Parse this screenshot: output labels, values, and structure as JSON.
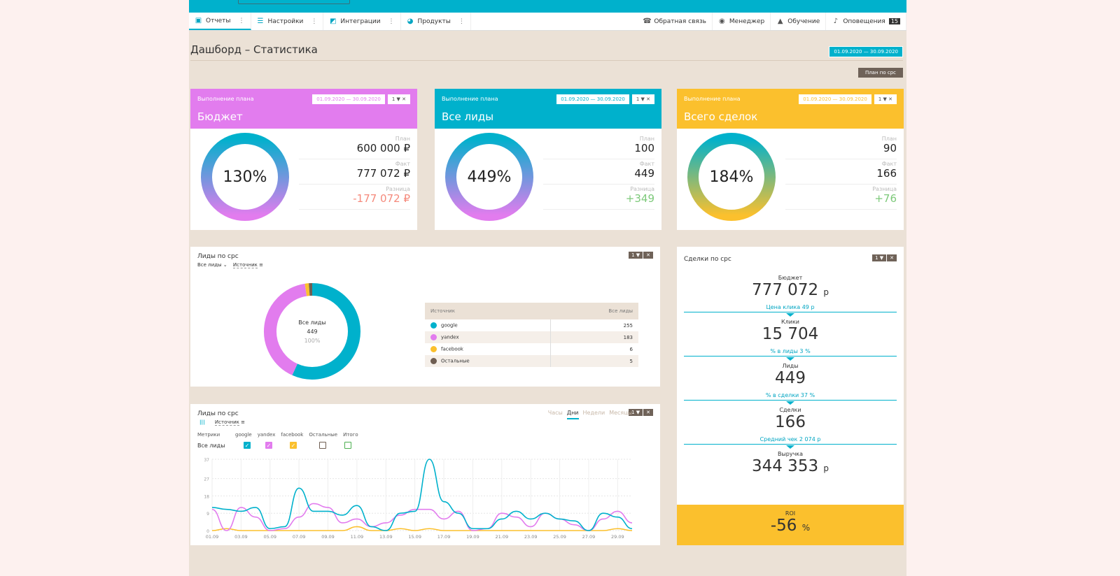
{
  "nav": {
    "items": [
      {
        "label": "Отчеты",
        "icon": "clipboard-icon"
      },
      {
        "label": "Настройки",
        "icon": "sliders-icon"
      },
      {
        "label": "Интеграции",
        "icon": "puzzle-icon"
      },
      {
        "label": "Продукты",
        "icon": "globe-icon"
      }
    ],
    "right": [
      {
        "label": "Обратная связь",
        "icon": "feedback-icon"
      },
      {
        "label": "Менеджер",
        "icon": "headset-icon"
      },
      {
        "label": "Обучение",
        "icon": "graduation-cap-icon"
      },
      {
        "label": "Оповещения",
        "icon": "bell-icon",
        "badge": "15"
      }
    ]
  },
  "page": {
    "title": "Дашборд – Статистика",
    "date_range": "01.09.2020 — 30.09.2020",
    "plan_button": "План по cpc"
  },
  "cards": [
    {
      "sub": "Выполнение плана",
      "title": "Бюджет",
      "range": "01.09.2020 — 30.09.2020",
      "filter": "1 ▼ ✕",
      "percent": "130%",
      "color": "#e27cee",
      "plan_label": "План",
      "plan": "600 000 ₽",
      "fact_label": "Факт",
      "fact": "777 072 ₽",
      "diff_label": "Разница",
      "diff": "-177 072 ₽",
      "diff_color": "#f58a7c"
    },
    {
      "sub": "Выполнение плана",
      "title": "Все лиды",
      "range": "01.09.2020 — 30.09.2020",
      "filter": "1 ▼ ✕",
      "percent": "449%",
      "color": "#00b1cc",
      "plan_label": "План",
      "plan": "100",
      "fact_label": "Факт",
      "fact": "449",
      "diff_label": "Разница",
      "diff": "+349",
      "diff_color": "#7dc97a"
    },
    {
      "sub": "Выполнение плана",
      "title": "Всего сделок",
      "range": "01.09.2020 — 30.09.2020",
      "filter": "1 ▼ ✕",
      "percent": "184%",
      "color": "#fbc02d",
      "plan_label": "План",
      "plan": "90",
      "fact_label": "Факт",
      "fact": "166",
      "diff_label": "Разница",
      "diff": "+76",
      "diff_color": "#7dc97a"
    }
  ],
  "pie_panel": {
    "title": "Лиды по cpc",
    "filter1": "Все лиды",
    "filter2": "Источник",
    "center_label": "Все лиды",
    "center_value": "449",
    "center_pct": "100%",
    "table": {
      "headers": [
        "Источник",
        "Все лиды"
      ],
      "rows": [
        {
          "name": "google",
          "value": "255",
          "color": "#00b1cc"
        },
        {
          "name": "yandex",
          "value": "183",
          "color": "#e27cee"
        },
        {
          "name": "facebook",
          "value": "6",
          "color": "#fbc02d"
        },
        {
          "name": "Остальные",
          "value": "5",
          "color": "#6f5e52"
        }
      ]
    }
  },
  "line_panel": {
    "title": "Лиды по cpc",
    "filter": "Источник",
    "tabs": [
      "Часы",
      "Дни",
      "Недели",
      "Месяцы"
    ],
    "active_tab": "Дни",
    "metrics_label": "Метрики",
    "row_label": "Все лиды",
    "legend": [
      {
        "name": "google",
        "checked": true,
        "color": "#00b1cc"
      },
      {
        "name": "yandex",
        "checked": true,
        "color": "#e27cee"
      },
      {
        "name": "facebook",
        "checked": true,
        "color": "#fbc02d"
      },
      {
        "name": "Остальные",
        "checked": false,
        "color": "#6f5e52"
      },
      {
        "name": "Итого",
        "checked": false,
        "color": "#4caf50"
      }
    ]
  },
  "chart_data": {
    "type": "line",
    "x": [
      "01.09",
      "02.09",
      "03.09",
      "04.09",
      "05.09",
      "06.09",
      "07.09",
      "08.09",
      "09.09",
      "10.09",
      "11.09",
      "12.09",
      "13.09",
      "14.09",
      "15.09",
      "16.09",
      "17.09",
      "18.09",
      "19.09",
      "20.09",
      "21.09",
      "22.09",
      "23.09",
      "24.09",
      "25.09",
      "26.09",
      "27.09",
      "28.09",
      "29.09",
      "30.09"
    ],
    "x_tick_labels": [
      "01.09",
      "03.09",
      "05.09",
      "07.09",
      "09.09",
      "11.09",
      "13.09",
      "15.09",
      "17.09",
      "19.09",
      "21.09",
      "23.09",
      "25.09",
      "27.09",
      "29.09"
    ],
    "y_ticks": [
      0,
      9,
      18,
      27,
      37
    ],
    "ylim": [
      0,
      37
    ],
    "grid": true,
    "series": [
      {
        "name": "google",
        "color": "#00b1cc",
        "values": [
          12,
          11,
          10,
          12,
          1,
          2,
          22,
          10,
          10,
          8,
          13,
          2,
          0,
          9,
          10,
          37,
          15,
          9,
          1,
          1,
          6,
          10,
          6,
          9,
          6,
          5,
          0,
          9,
          7,
          1
        ]
      },
      {
        "name": "yandex",
        "color": "#e27cee",
        "values": [
          11,
          0,
          12,
          7,
          0,
          1,
          7,
          14,
          12,
          4,
          6,
          2,
          4,
          8,
          11,
          11,
          6,
          10,
          0,
          1,
          9,
          7,
          2,
          9,
          6,
          3,
          0,
          6,
          10,
          4
        ]
      },
      {
        "name": "facebook",
        "color": "#fbc02d",
        "values": [
          0,
          1,
          0,
          0,
          0,
          0,
          0,
          0,
          0,
          0,
          2,
          0,
          0,
          1,
          0,
          1,
          0,
          0,
          0,
          0,
          0,
          0,
          0,
          0,
          0,
          0,
          0,
          0,
          1,
          0
        ]
      }
    ]
  },
  "funnel": {
    "title": "Сделки по cpc",
    "filter": "1 ▼ ✕",
    "steps": [
      {
        "label": "Бюджет",
        "value": "777 072",
        "unit": "р",
        "conv": "Цена клика 49 р"
      },
      {
        "label": "Клики",
        "value": "15 704",
        "unit": "",
        "conv": "% в лиды 3 %"
      },
      {
        "label": "Лиды",
        "value": "449",
        "unit": "",
        "conv": "% в сделки 37 %"
      },
      {
        "label": "Сделки",
        "value": "166",
        "unit": "",
        "conv": "Средний чек 2 074 р"
      },
      {
        "label": "Выручка",
        "value": "344 353",
        "unit": "р",
        "conv": ""
      }
    ],
    "roi_label": "ROI",
    "roi_value": "-56",
    "roi_unit": "%"
  }
}
